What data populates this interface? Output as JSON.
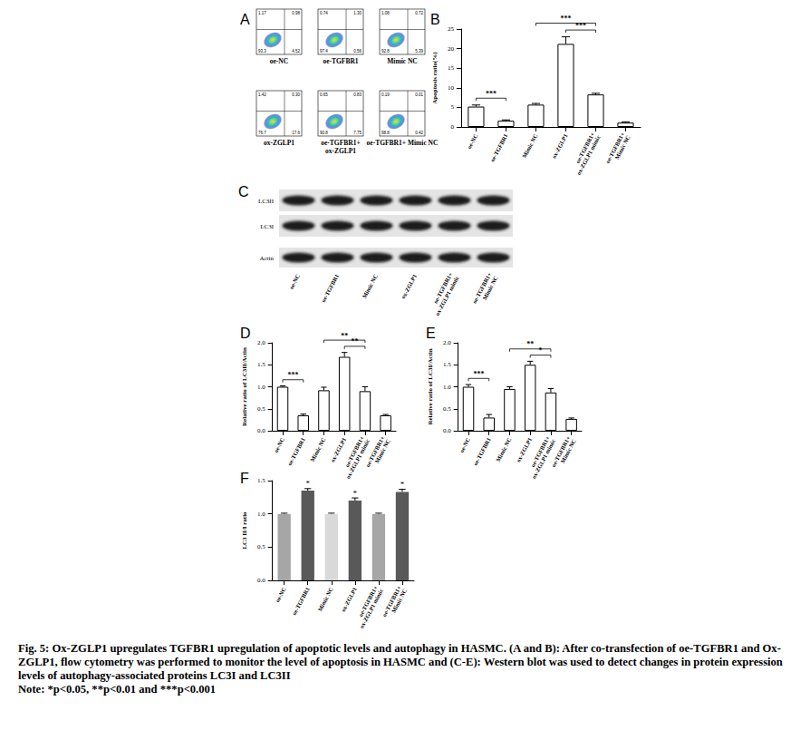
{
  "flow": {
    "title": "A",
    "plots": [
      {
        "title_lines": [
          "oe-NC"
        ],
        "UL": "1.17",
        "UR": "0.98",
        "LL": "93.3",
        "LR": "4.52"
      },
      {
        "title_lines": [
          "oe-TGFBR1"
        ],
        "UL": "0.74",
        "UR": "1.30",
        "LL": "97.4",
        "LR": "0.56"
      },
      {
        "title_lines": [
          "Mimic NC"
        ],
        "UL": "1.08",
        "UR": "0.72",
        "LL": "92.8",
        "LR": "5.39"
      },
      {
        "title_lines": [
          "ox-ZGLP1"
        ],
        "UL": "1.42",
        "UR": "0.30",
        "LL": "76.7",
        "LR": "17.6"
      },
      {
        "title_lines": [
          "oe-TGFBR1+",
          "ox-ZGLP1"
        ],
        "UL": "0.65",
        "UR": "0.83",
        "LL": "90.8",
        "LR": "7.75"
      },
      {
        "title_lines": [
          "oe-TGFBR1+ Mimic NC"
        ],
        "UL": "0.19",
        "UR": "0.01",
        "LL": "98.8",
        "LR": "0.42"
      }
    ]
  },
  "blot": {
    "title": "C",
    "rows": [
      "LC3II",
      "LC3I",
      "Actin"
    ],
    "lanes": [
      "oe-NC",
      "oe-TGFBR1",
      "Mimic NC",
      "ox-ZGLP1",
      "oe-TGFBR1+ ox-ZGLP1 mimic",
      "oe-TGFBR1+ Mimic NC"
    ]
  },
  "chart_data": [
    {
      "type": "bar",
      "title": "B",
      "ylabel": "Apoptosis ratio(%)",
      "categories": [
        "oe-NC",
        "oe-TGFBR1",
        "Mimic NC",
        "ox-ZGLP1",
        "oe-TGFBR1+ ox-ZGLP1 mimic",
        "oe-TGFBR1+ Mimic NC"
      ],
      "values": [
        5.2,
        1.6,
        5.7,
        21.2,
        8.3,
        1.1
      ],
      "errors": [
        0.4,
        0.2,
        0.3,
        1.8,
        0.3,
        0.2
      ],
      "color": "#ffffff",
      "ylim": [
        0,
        25
      ],
      "yticks": [
        0,
        5,
        10,
        15,
        20,
        25
      ],
      "grid": false,
      "annotations": [
        {
          "from": 0,
          "to": 1,
          "label": "***"
        },
        {
          "from": 3,
          "to": 4,
          "label": "***"
        },
        {
          "from": 2,
          "to": 4,
          "label": "***"
        }
      ]
    },
    {
      "type": "bar",
      "title": "D",
      "ylabel": "Relative ratio of LC3II/Actin",
      "categories": [
        "oe-NC",
        "oe-TGFBR1",
        "Mimic NC",
        "ox-ZGLP1",
        "oe-TGFBR1+ ox-ZGLP1 mimic",
        "oe-TGFBR1+ Mimic NC"
      ],
      "values": [
        1.0,
        0.35,
        0.92,
        1.68,
        0.9,
        0.35
      ],
      "errors": [
        0.02,
        0.03,
        0.07,
        0.1,
        0.1,
        0.02
      ],
      "color": "#ffffff",
      "ylim": [
        0,
        2
      ],
      "yticks": [
        {
          "value": 0,
          "label": "0.0"
        },
        {
          "value": 0.5,
          "label": "0.5"
        },
        {
          "value": 1,
          "label": "1.0"
        },
        {
          "value": 1.5,
          "label": "1.5"
        },
        {
          "value": 2,
          "label": "2.0"
        }
      ],
      "grid": false,
      "annotations": [
        {
          "from": 0,
          "to": 1,
          "label": "***"
        },
        {
          "from": 3,
          "to": 4,
          "label": "**"
        },
        {
          "from": 2,
          "to": 4,
          "label": "**"
        }
      ]
    },
    {
      "type": "bar",
      "title": "E",
      "ylabel": "Relative ratio of LC3I/Actin",
      "categories": [
        "oe-NC",
        "oe-TGFBR1",
        "Mimic NC",
        "ox-ZGLP1",
        "oe-TGFBR1+ ox-ZGLP1 mimic",
        "oe-TGFBR1+ Mimic NC"
      ],
      "values": [
        1.0,
        0.3,
        0.95,
        1.5,
        0.87,
        0.27
      ],
      "errors": [
        0.05,
        0.07,
        0.05,
        0.08,
        0.09,
        0.02
      ],
      "color": "#ffffff",
      "ylim": [
        0,
        2
      ],
      "yticks": [
        {
          "value": 0,
          "label": "0.0"
        },
        {
          "value": 0.5,
          "label": "0.5"
        },
        {
          "value": 1,
          "label": "1.0"
        },
        {
          "value": 1.5,
          "label": "1.5"
        },
        {
          "value": 2,
          "label": "2.0"
        }
      ],
      "grid": false,
      "annotations": [
        {
          "from": 0,
          "to": 1,
          "label": "***"
        },
        {
          "from": 3,
          "to": 4,
          "label": "*"
        },
        {
          "from": 2,
          "to": 4,
          "label": "**"
        }
      ]
    },
    {
      "type": "bar",
      "title": "F",
      "ylabel": "LC3 II/I ratio",
      "categories": [
        "oe-NC",
        "oe-TGFBR1",
        "Mimic NC",
        "ox-ZGLP1",
        "oe-TGFBR1+ ox-ZGLP1 mimic",
        "oe-TGFBR1+ Mimic NC"
      ],
      "values": [
        1.0,
        1.35,
        1.0,
        1.2,
        1.0,
        1.33
      ],
      "errors": [
        0.01,
        0.03,
        0.01,
        0.04,
        0.01,
        0.04
      ],
      "colors": [
        "#a6a6a6",
        "#595959",
        "#d9d9d9",
        "#595959",
        "#a6a6a6",
        "#595959"
      ],
      "ylim": [
        0,
        1.5
      ],
      "yticks": [
        {
          "value": 0,
          "label": "0.0"
        },
        {
          "value": 0.5,
          "label": "0.5"
        },
        {
          "value": 1,
          "label": "1.0"
        },
        {
          "value": 1.5,
          "label": "1.5"
        }
      ],
      "grid": false,
      "annotations": [
        {
          "at": 1,
          "label": "*"
        },
        {
          "at": 3,
          "label": "*"
        },
        {
          "at": 5,
          "label": "*"
        }
      ]
    }
  ],
  "caption": {
    "text": "Fig. 5: Ox-ZGLP1 upregulates TGFBR1 upregulation of apoptotic levels and autophagy in HASMC. (A and B): After co-transfection of oe-TGFBR1 and Ox-ZGLP1, flow cytometry was performed to monitor the level of apoptosis in HASMC and (C-E): Western blot was used to detect changes in protein expression levels of autophagy-associated proteins LC3I and LC3II",
    "note": "Note: *p<0.05, **p<0.01 and ***p<0.001"
  }
}
